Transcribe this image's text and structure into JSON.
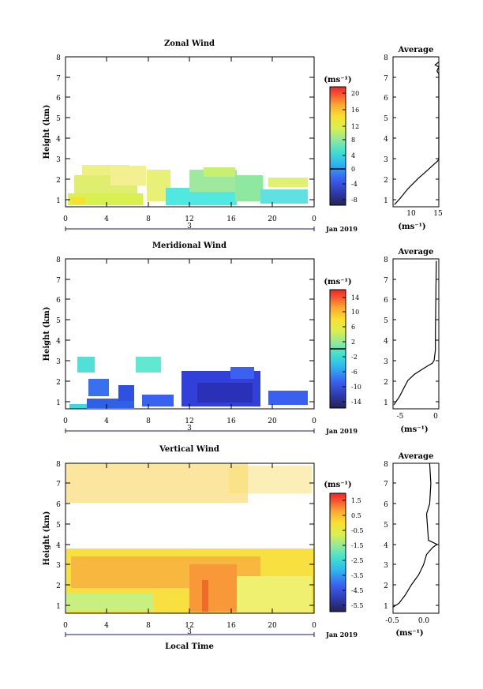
{
  "panels": [
    {
      "title": "Zonal Wind",
      "ylabel": "Height (km)",
      "yticks": [
        "1",
        "2",
        "3",
        "4",
        "5",
        "6",
        "7",
        "8"
      ],
      "xticks": [
        "0",
        "4",
        "8",
        "12",
        "16",
        "20",
        "0"
      ],
      "day_label": "3",
      "date_label": "Jan 2019",
      "unit_label": "(ms⁻¹)",
      "cb_ticks": [
        "20",
        "16",
        "12",
        "8",
        "4",
        "0",
        "-4",
        "-8"
      ],
      "avg_title": "Average",
      "avg_xticks": [
        "10",
        "15"
      ],
      "avg_xlabel": "(ms⁻¹)"
    },
    {
      "title": "Meridional Wind",
      "ylabel": "Height (km)",
      "yticks": [
        "1",
        "2",
        "3",
        "4",
        "5",
        "6",
        "7",
        "8"
      ],
      "xticks": [
        "0",
        "4",
        "8",
        "12",
        "16",
        "20",
        "0"
      ],
      "day_label": "3",
      "date_label": "Jan 2019",
      "unit_label": "(ms⁻¹)",
      "cb_ticks": [
        "14",
        "10",
        "6",
        "2",
        "-2",
        "-6",
        "-10",
        "-14"
      ],
      "avg_title": "Average",
      "avg_xticks": [
        "-5",
        "0"
      ],
      "avg_xlabel": "(ms⁻¹)"
    },
    {
      "title": "Vertical Wind",
      "ylabel": "Height (km)",
      "yticks": [
        "1",
        "2",
        "3",
        "4",
        "5",
        "6",
        "7",
        "8"
      ],
      "xticks": [
        "0",
        "4",
        "8",
        "12",
        "16",
        "20",
        "0"
      ],
      "day_label": "3",
      "date_label": "Jan 2019",
      "unit_label": "(ms⁻¹)",
      "cb_ticks": [
        "1.5",
        "0.5",
        "-0.5",
        "-1.5",
        "-2.5",
        "-3.5",
        "-4.5",
        "-5.5"
      ],
      "avg_title": "Average",
      "avg_xticks": [
        "-0.5",
        "0.0"
      ],
      "avg_xlabel": "(ms⁻¹)",
      "xlabel": "Local Time"
    }
  ],
  "chart_data": [
    {
      "type": "heatmap",
      "title": "Zonal Wind",
      "xlabel": "",
      "ylabel": "Height (km)",
      "xlim": [
        0,
        24
      ],
      "ylim": [
        0.6,
        8
      ],
      "colorbar_range": [
        -10,
        22
      ],
      "colorbar_zero_line": 0,
      "regions": [
        {
          "x": [
            0,
            9.5
          ],
          "y": [
            0.7,
            2.7
          ],
          "value": 12
        },
        {
          "x": [
            9.5,
            19
          ],
          "y": [
            0.7,
            2.0
          ],
          "value": 5
        },
        {
          "x": [
            11,
            18
          ],
          "y": [
            1.5,
            2.7
          ],
          "value": 9
        },
        {
          "x": [
            18,
            24
          ],
          "y": [
            0.7,
            1.5
          ],
          "value": 6
        },
        {
          "x": [
            18,
            24
          ],
          "y": [
            1.5,
            2.3
          ],
          "value": 10
        }
      ]
    },
    {
      "type": "line",
      "title": "Average",
      "xlabel": "(ms⁻¹)",
      "ylabel": "Height (km)",
      "xlim": [
        5,
        15
      ],
      "ylim": [
        0.6,
        8
      ],
      "x": [
        5.3,
        6.5,
        8.3,
        10.5,
        12.0,
        13.5,
        14.7,
        15.0,
        15.0,
        15.0,
        15.0,
        15.0,
        14.6,
        15.0,
        14.2,
        15.0
      ],
      "y": [
        0.7,
        1.0,
        1.5,
        2.0,
        2.3,
        2.6,
        2.85,
        2.95,
        3.0,
        6.5,
        7.0,
        7.15,
        7.3,
        7.5,
        7.6,
        7.75
      ]
    },
    {
      "type": "heatmap",
      "title": "Meridional Wind",
      "xlabel": "",
      "ylabel": "Height (km)",
      "xlim": [
        0,
        24
      ],
      "ylim": [
        0.6,
        8
      ],
      "colorbar_range": [
        -16,
        16
      ],
      "colorbar_zero_line": 0,
      "regions": [
        {
          "x": [
            0,
            10
          ],
          "y": [
            0.7,
            2.0
          ],
          "value": -8
        },
        {
          "x": [
            11,
            19
          ],
          "y": [
            0.7,
            2.5
          ],
          "value": -12
        },
        {
          "x": [
            19,
            24
          ],
          "y": [
            0.7,
            1.5
          ],
          "value": -8
        },
        {
          "x": [
            1,
            10
          ],
          "y": [
            2.6,
            3.4
          ],
          "value": -1
        }
      ]
    },
    {
      "type": "line",
      "title": "Average",
      "xlabel": "(ms⁻¹)",
      "ylabel": "Height (km)",
      "xlim": [
        -10,
        0.8
      ],
      "ylim": [
        0.6,
        8
      ],
      "x": [
        -9.8,
        -8.5,
        -7.5,
        -6.5,
        -5.0,
        -3.5,
        -2.0,
        -0.7,
        -0.3,
        0.0,
        0.0,
        0.2
      ],
      "y": [
        0.8,
        1.2,
        1.6,
        2.0,
        2.3,
        2.5,
        2.7,
        2.85,
        3.0,
        3.5,
        4.3,
        7.9
      ]
    },
    {
      "type": "heatmap",
      "title": "Vertical Wind",
      "xlabel": "Local Time",
      "ylabel": "Height (km)",
      "xlim": [
        0,
        24
      ],
      "ylim": [
        0.6,
        8
      ],
      "colorbar_range": [
        -6,
        2
      ],
      "regions": [
        {
          "x": [
            0,
            24
          ],
          "y": [
            0.7,
            3.7
          ],
          "value": 0.3
        },
        {
          "x": [
            0,
            10
          ],
          "y": [
            0.7,
            1.3
          ],
          "value": -0.8
        },
        {
          "x": [
            11,
            19
          ],
          "y": [
            0.9,
            3.0
          ],
          "value": 0.8
        },
        {
          "x": [
            0,
            24
          ],
          "y": [
            6.2,
            8.0
          ],
          "value": 0.6
        }
      ]
    },
    {
      "type": "line",
      "title": "Average",
      "xlabel": "(ms⁻¹)",
      "ylabel": "Height (km)",
      "xlim": [
        -0.5,
        0.25
      ],
      "ylim": [
        0.6,
        8
      ],
      "x": [
        -0.5,
        -0.4,
        -0.3,
        -0.2,
        -0.08,
        0.0,
        0.05,
        0.15,
        0.22,
        0.08,
        0.05,
        0.1,
        0.12,
        0.1
      ],
      "y": [
        0.9,
        1.1,
        1.5,
        2.0,
        2.5,
        3.0,
        3.5,
        3.85,
        4.0,
        4.2,
        5.5,
        6.0,
        7.0,
        8.0
      ]
    }
  ]
}
